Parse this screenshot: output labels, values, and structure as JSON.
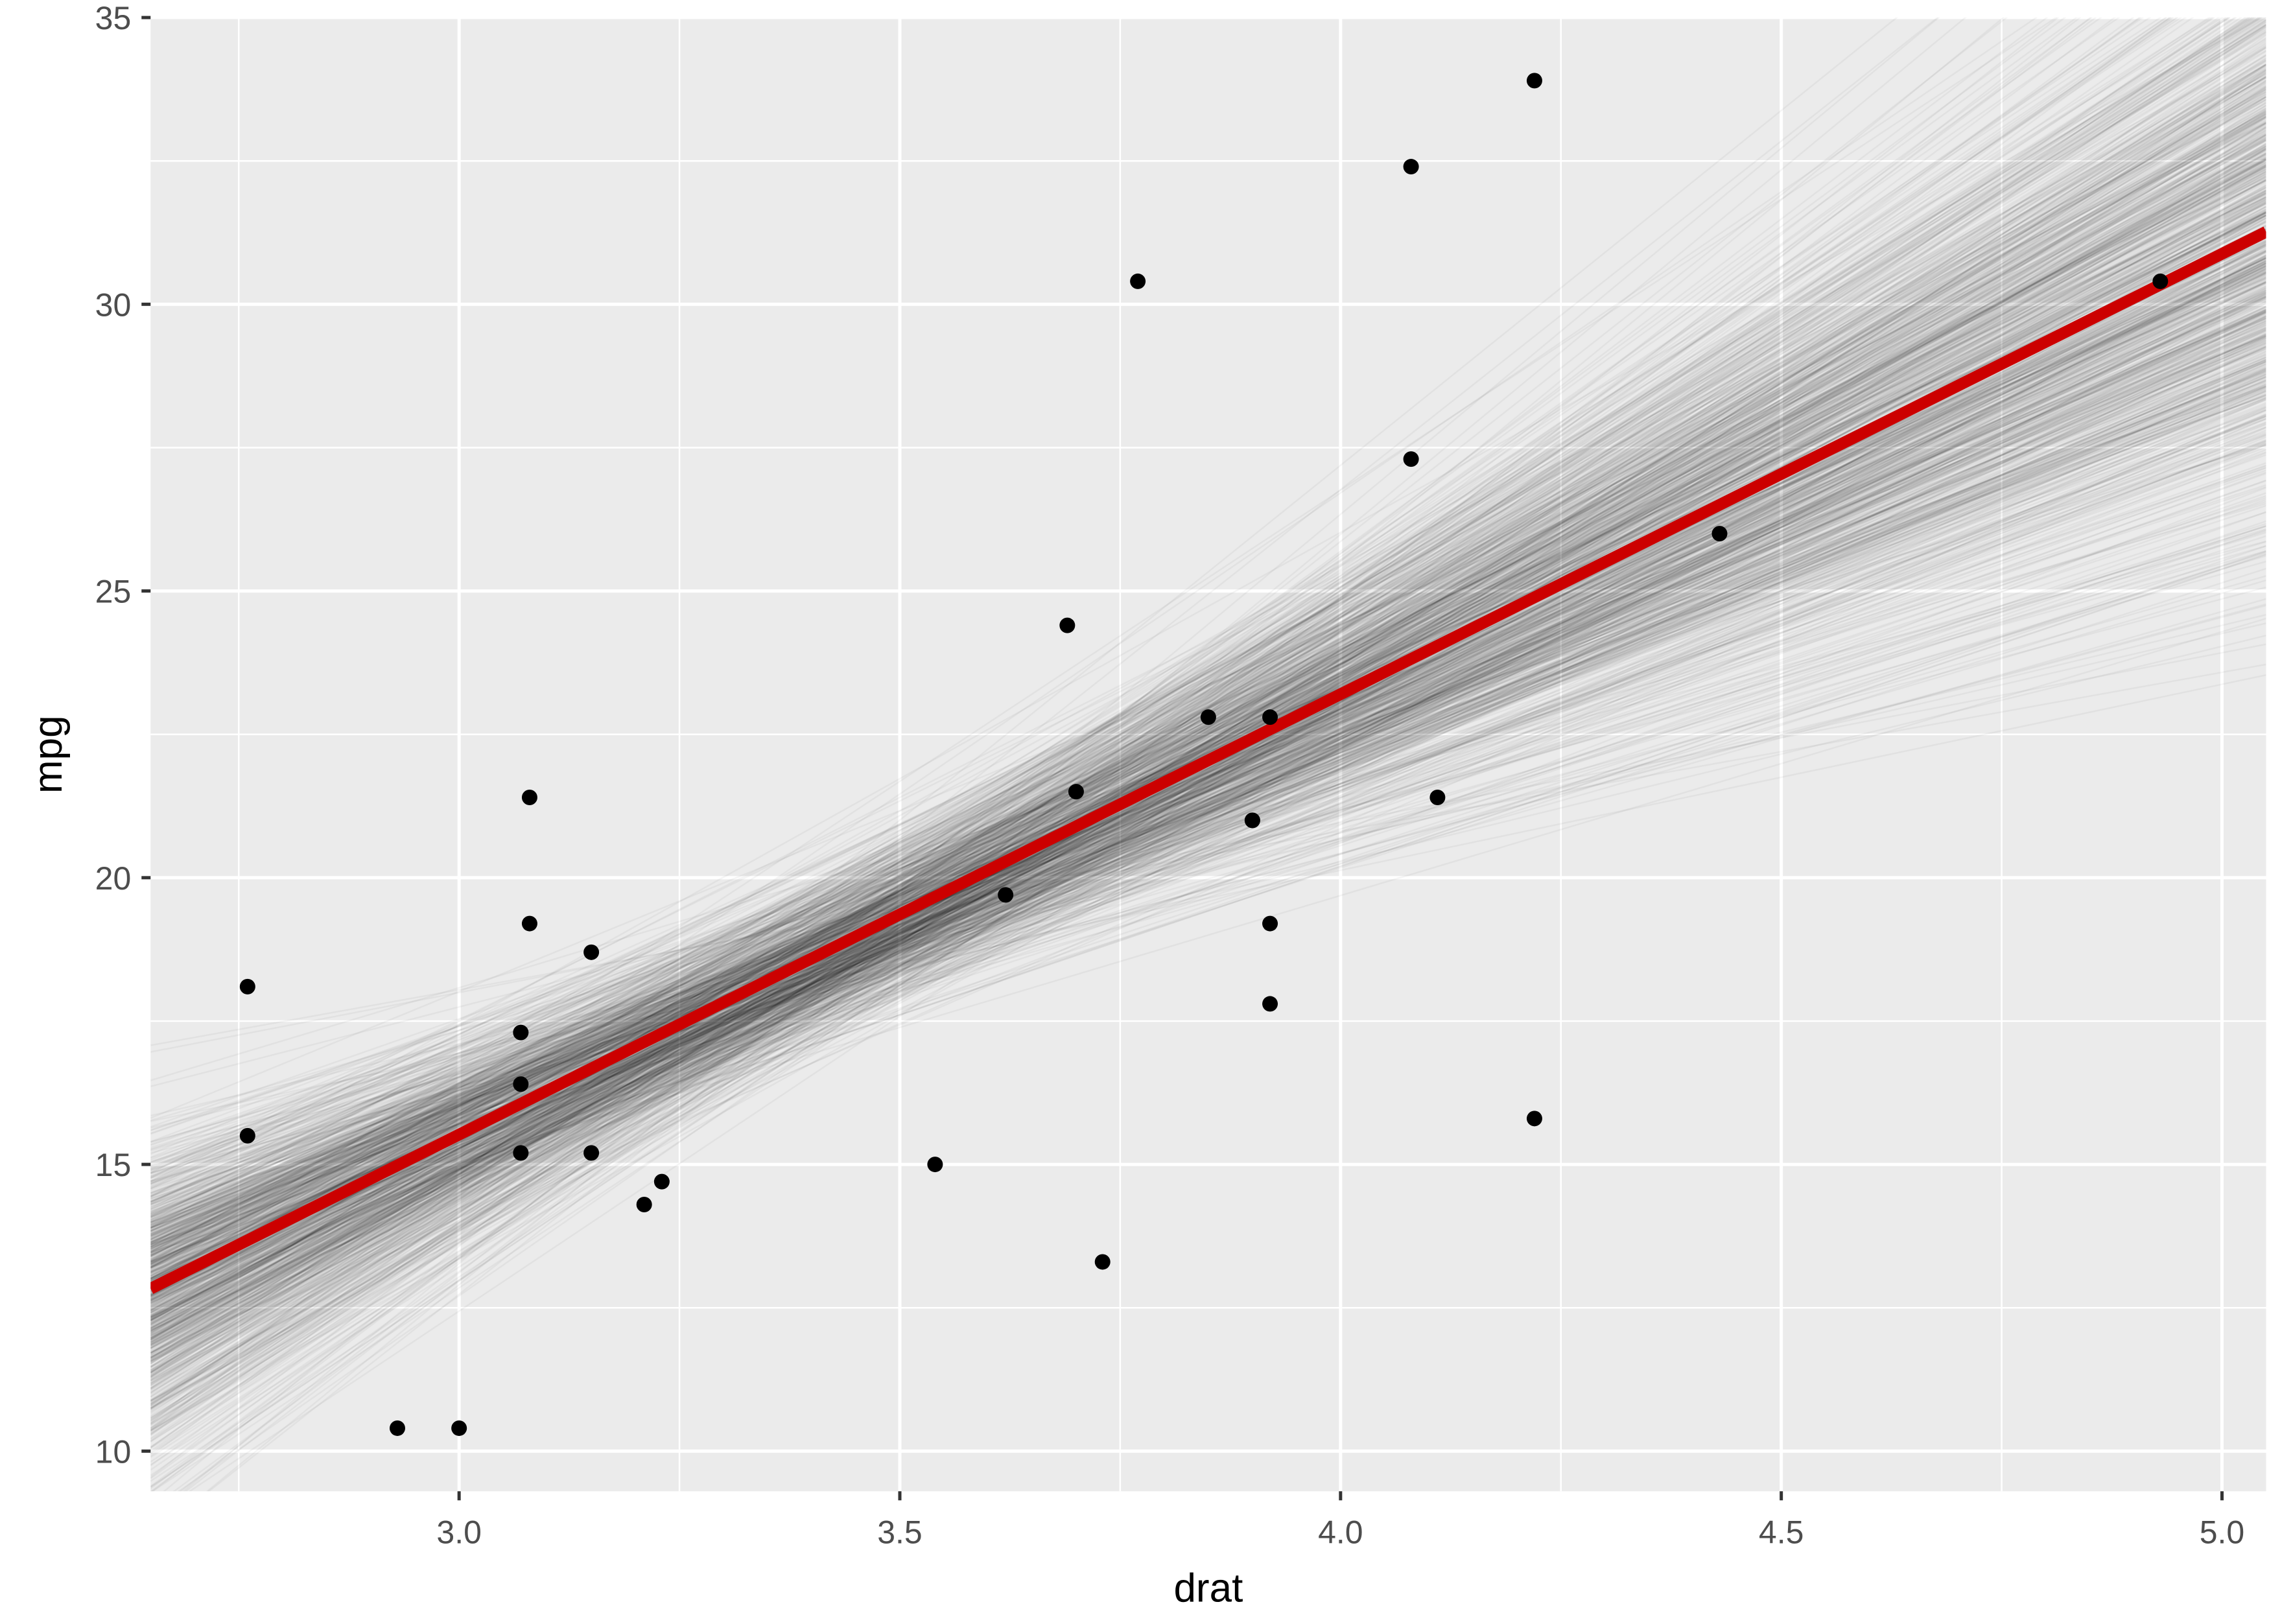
{
  "chart_data": {
    "type": "scatter",
    "title": "",
    "xlabel": "drat",
    "ylabel": "mpg",
    "xlim": [
      2.65,
      5.05
    ],
    "ylim": [
      9.3,
      35.0
    ],
    "x_ticks": [
      3.0,
      3.5,
      4.0,
      4.5,
      5.0
    ],
    "x_tick_labels": [
      "3.0",
      "3.5",
      "4.0",
      "4.5",
      "5.0"
    ],
    "y_ticks": [
      10,
      15,
      20,
      25,
      30,
      35
    ],
    "y_tick_labels": [
      "10",
      "15",
      "20",
      "25",
      "30",
      "35"
    ],
    "grid": true,
    "legend": "none",
    "points": [
      {
        "x": 3.9,
        "y": 21.0
      },
      {
        "x": 3.9,
        "y": 21.0
      },
      {
        "x": 3.85,
        "y": 22.8
      },
      {
        "x": 3.08,
        "y": 21.4
      },
      {
        "x": 3.15,
        "y": 18.7
      },
      {
        "x": 2.76,
        "y": 18.1
      },
      {
        "x": 3.21,
        "y": 14.3
      },
      {
        "x": 3.69,
        "y": 24.4
      },
      {
        "x": 3.92,
        "y": 22.8
      },
      {
        "x": 3.92,
        "y": 19.2
      },
      {
        "x": 3.92,
        "y": 17.8
      },
      {
        "x": 3.07,
        "y": 16.4
      },
      {
        "x": 3.07,
        "y": 17.3
      },
      {
        "x": 3.07,
        "y": 15.2
      },
      {
        "x": 2.93,
        "y": 10.4
      },
      {
        "x": 3.0,
        "y": 10.4
      },
      {
        "x": 3.23,
        "y": 14.7
      },
      {
        "x": 4.08,
        "y": 32.4
      },
      {
        "x": 4.93,
        "y": 30.4
      },
      {
        "x": 4.22,
        "y": 33.9
      },
      {
        "x": 3.7,
        "y": 21.5
      },
      {
        "x": 2.76,
        "y": 15.5
      },
      {
        "x": 3.15,
        "y": 15.2
      },
      {
        "x": 3.73,
        "y": 13.3
      },
      {
        "x": 3.08,
        "y": 19.2
      },
      {
        "x": 4.08,
        "y": 27.3
      },
      {
        "x": 4.43,
        "y": 26.0
      },
      {
        "x": 3.77,
        "y": 30.4
      },
      {
        "x": 4.22,
        "y": 15.8
      },
      {
        "x": 3.62,
        "y": 19.7
      },
      {
        "x": 3.54,
        "y": 15.0
      },
      {
        "x": 4.11,
        "y": 21.4
      }
    ],
    "fit_line": {
      "intercept": -7.52,
      "slope": 7.68,
      "color": "#CC0000"
    },
    "bootstrap_lines": {
      "count": 1000,
      "color": "#000000",
      "opacity": 0.04
    },
    "colors": {
      "panel": "#EBEBEB",
      "grid": "#FFFFFF",
      "point": "#000000",
      "axis_text": "#4D4D4D",
      "axis_title": "#000000"
    }
  }
}
